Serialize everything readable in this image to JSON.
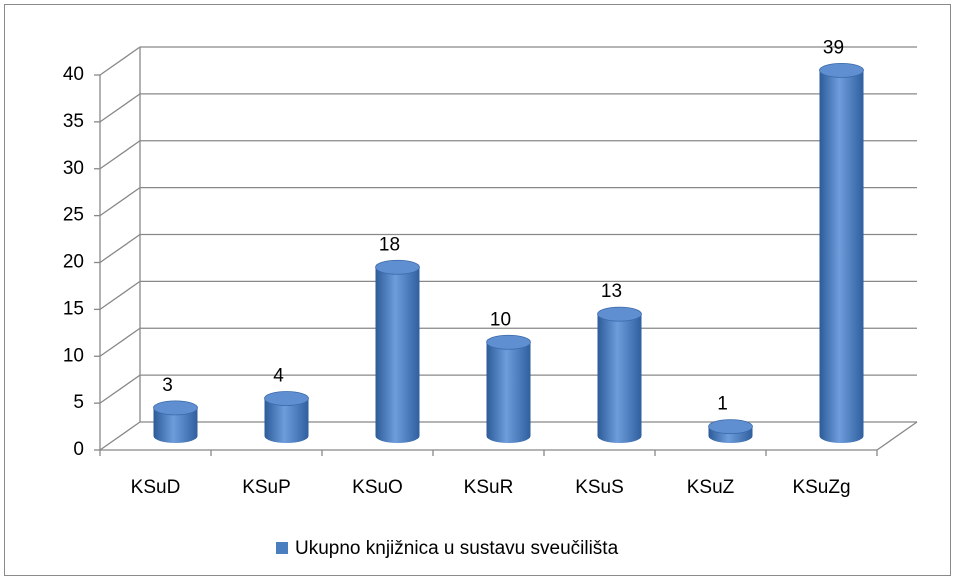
{
  "chart_data": {
    "type": "bar",
    "categories": [
      "KSuD",
      "KSuP",
      "KSuO",
      "KSuR",
      "KSuS",
      "KSuZ",
      "KSuZg"
    ],
    "series": [
      {
        "name": "Ukupno knjižnica  u sustavu sveučilišta",
        "color": "#4a7ebf",
        "values": [
          3,
          4,
          18,
          10,
          13,
          1,
          39
        ]
      }
    ],
    "ylim": [
      0,
      40
    ],
    "yticks": [
      0,
      5,
      10,
      15,
      20,
      25,
      30,
      35,
      40
    ],
    "grid": true,
    "legend": "bottom"
  }
}
